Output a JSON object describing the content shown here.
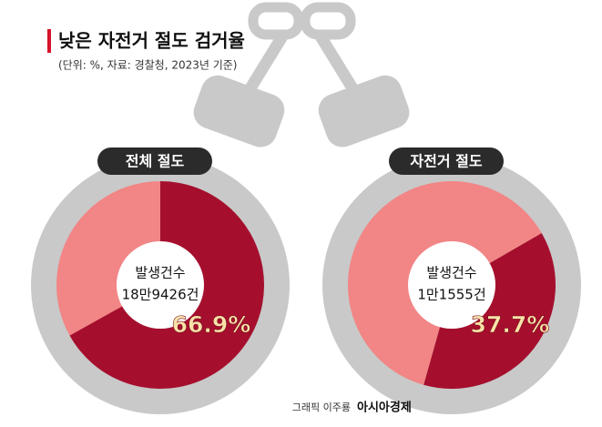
{
  "title": "낮은 자전거 절도 검거율",
  "subtitle": "(단위: %, 자료: 경찰청, 2023년 기준)",
  "credit": {
    "artist": "그래픽 이주룡",
    "publisher": "아시아경제"
  },
  "chart_data": [
    {
      "type": "pie",
      "title": "전체 절도",
      "center_label": "발생건수",
      "center_value": "18만9426건",
      "values": [
        66.9,
        33.1
      ],
      "value_labels": [
        "66.9%",
        null
      ],
      "colors": [
        "#a50f2d",
        "#f28585"
      ]
    },
    {
      "type": "pie",
      "title": "자전거 절도",
      "center_label": "발생건수",
      "center_value": "1만1555건",
      "values": [
        37.7,
        62.3
      ],
      "value_labels": [
        "37.7%",
        null
      ],
      "colors": [
        "#a50f2d",
        "#f28585"
      ]
    }
  ]
}
